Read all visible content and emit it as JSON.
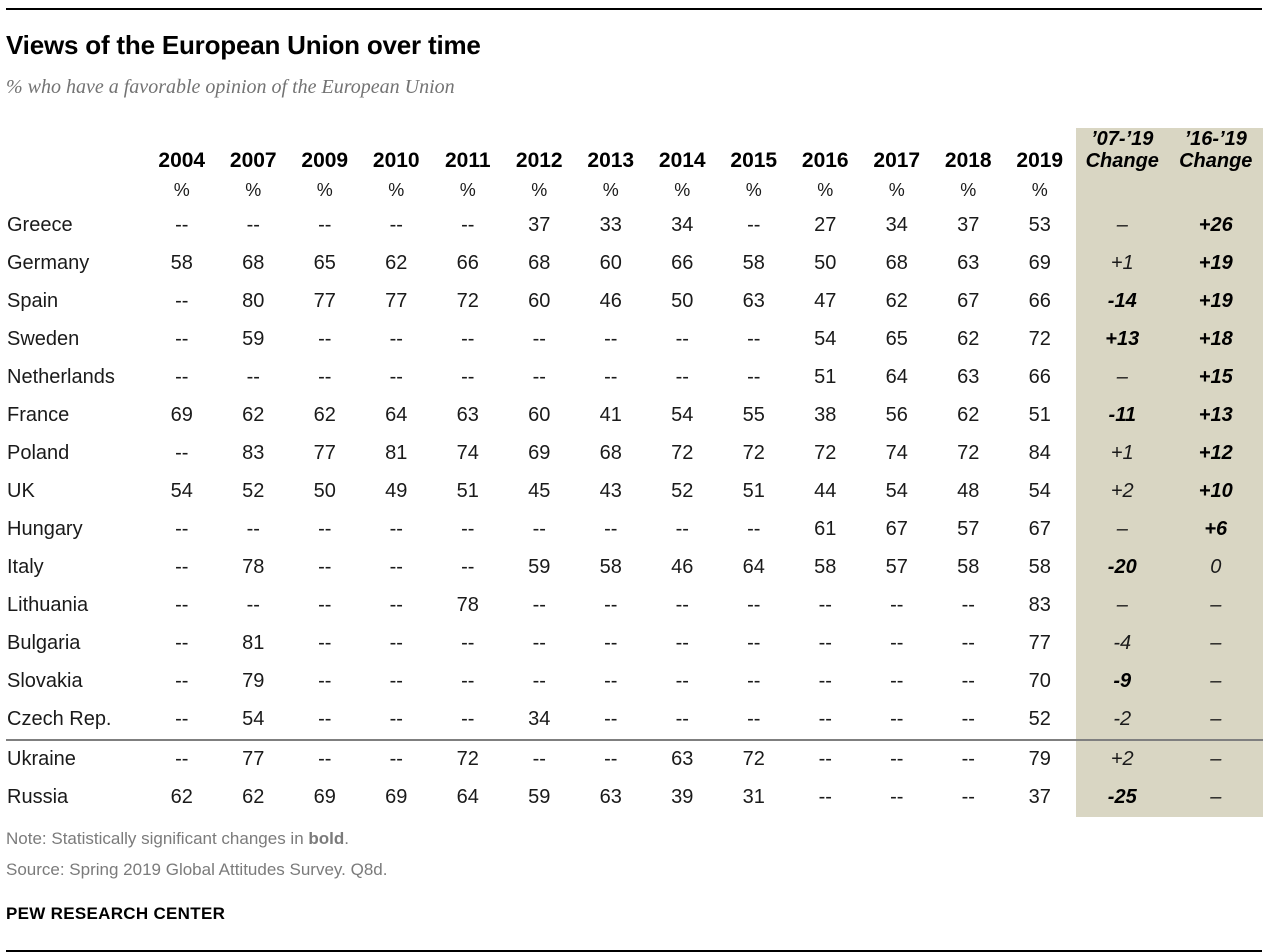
{
  "header": {
    "title": "Views of the European Union over time",
    "subtitle": "% who have a favorable opinion of the European Union"
  },
  "colors": {
    "highlight_panel": "#d9d6c3",
    "divider_line": "#7f7f7f",
    "rule_line": "#000000",
    "note_text": "#7b7b7b"
  },
  "chart_data": {
    "type": "table",
    "title": "Views of the European Union over time",
    "subtitle": "% who have a favorable opinion of the European Union",
    "year_columns": [
      "2004",
      "2007",
      "2009",
      "2010",
      "2011",
      "2012",
      "2013",
      "2014",
      "2015",
      "2016",
      "2017",
      "2018",
      "2019"
    ],
    "percent_symbol": "%",
    "change_columns": [
      {
        "line1": "’07-’19",
        "line2": "Change"
      },
      {
        "line1": "’16-’19",
        "line2": "Change"
      }
    ],
    "rows": [
      {
        "country": "Greece",
        "values": [
          "--",
          "--",
          "--",
          "--",
          "--",
          "37",
          "33",
          "34",
          "--",
          "27",
          "34",
          "37",
          "53"
        ],
        "change_07_19": {
          "text": "–",
          "bold": false
        },
        "change_16_19": {
          "text": "+26",
          "bold": true
        },
        "divider_above": false
      },
      {
        "country": "Germany",
        "values": [
          "58",
          "68",
          "65",
          "62",
          "66",
          "68",
          "60",
          "66",
          "58",
          "50",
          "68",
          "63",
          "69"
        ],
        "change_07_19": {
          "text": "+1",
          "bold": false
        },
        "change_16_19": {
          "text": "+19",
          "bold": true
        },
        "divider_above": false
      },
      {
        "country": "Spain",
        "values": [
          "--",
          "80",
          "77",
          "77",
          "72",
          "60",
          "46",
          "50",
          "63",
          "47",
          "62",
          "67",
          "66"
        ],
        "change_07_19": {
          "text": "-14",
          "bold": true
        },
        "change_16_19": {
          "text": "+19",
          "bold": true
        },
        "divider_above": false
      },
      {
        "country": "Sweden",
        "values": [
          "--",
          "59",
          "--",
          "--",
          "--",
          "--",
          "--",
          "--",
          "--",
          "54",
          "65",
          "62",
          "72"
        ],
        "change_07_19": {
          "text": "+13",
          "bold": true
        },
        "change_16_19": {
          "text": "+18",
          "bold": true
        },
        "divider_above": false
      },
      {
        "country": "Netherlands",
        "values": [
          "--",
          "--",
          "--",
          "--",
          "--",
          "--",
          "--",
          "--",
          "--",
          "51",
          "64",
          "63",
          "66"
        ],
        "change_07_19": {
          "text": "–",
          "bold": false
        },
        "change_16_19": {
          "text": "+15",
          "bold": true
        },
        "divider_above": false
      },
      {
        "country": "France",
        "values": [
          "69",
          "62",
          "62",
          "64",
          "63",
          "60",
          "41",
          "54",
          "55",
          "38",
          "56",
          "62",
          "51"
        ],
        "change_07_19": {
          "text": "-11",
          "bold": true
        },
        "change_16_19": {
          "text": "+13",
          "bold": true
        },
        "divider_above": false
      },
      {
        "country": "Poland",
        "values": [
          "--",
          "83",
          "77",
          "81",
          "74",
          "69",
          "68",
          "72",
          "72",
          "72",
          "74",
          "72",
          "84"
        ],
        "change_07_19": {
          "text": "+1",
          "bold": false
        },
        "change_16_19": {
          "text": "+12",
          "bold": true
        },
        "divider_above": false
      },
      {
        "country": "UK",
        "values": [
          "54",
          "52",
          "50",
          "49",
          "51",
          "45",
          "43",
          "52",
          "51",
          "44",
          "54",
          "48",
          "54"
        ],
        "change_07_19": {
          "text": "+2",
          "bold": false
        },
        "change_16_19": {
          "text": "+10",
          "bold": true
        },
        "divider_above": false
      },
      {
        "country": "Hungary",
        "values": [
          "--",
          "--",
          "--",
          "--",
          "--",
          "--",
          "--",
          "--",
          "--",
          "61",
          "67",
          "57",
          "67"
        ],
        "change_07_19": {
          "text": "–",
          "bold": false
        },
        "change_16_19": {
          "text": "+6",
          "bold": true
        },
        "divider_above": false
      },
      {
        "country": "Italy",
        "values": [
          "--",
          "78",
          "--",
          "--",
          "--",
          "59",
          "58",
          "46",
          "64",
          "58",
          "57",
          "58",
          "58"
        ],
        "change_07_19": {
          "text": "-20",
          "bold": true
        },
        "change_16_19": {
          "text": "0",
          "bold": false
        },
        "divider_above": false
      },
      {
        "country": "Lithuania",
        "values": [
          "--",
          "--",
          "--",
          "--",
          "78",
          "--",
          "--",
          "--",
          "--",
          "--",
          "--",
          "--",
          "83"
        ],
        "change_07_19": {
          "text": "–",
          "bold": false
        },
        "change_16_19": {
          "text": "–",
          "bold": false
        },
        "divider_above": false
      },
      {
        "country": "Bulgaria",
        "values": [
          "--",
          "81",
          "--",
          "--",
          "--",
          "--",
          "--",
          "--",
          "--",
          "--",
          "--",
          "--",
          "77"
        ],
        "change_07_19": {
          "text": "-4",
          "bold": false
        },
        "change_16_19": {
          "text": "–",
          "bold": false
        },
        "divider_above": false
      },
      {
        "country": "Slovakia",
        "values": [
          "--",
          "79",
          "--",
          "--",
          "--",
          "--",
          "--",
          "--",
          "--",
          "--",
          "--",
          "--",
          "70"
        ],
        "change_07_19": {
          "text": "-9",
          "bold": true
        },
        "change_16_19": {
          "text": "–",
          "bold": false
        },
        "divider_above": false
      },
      {
        "country": "Czech Rep.",
        "values": [
          "--",
          "54",
          "--",
          "--",
          "--",
          "34",
          "--",
          "--",
          "--",
          "--",
          "--",
          "--",
          "52"
        ],
        "change_07_19": {
          "text": "-2",
          "bold": false
        },
        "change_16_19": {
          "text": "–",
          "bold": false
        },
        "divider_above": false
      },
      {
        "country": "Ukraine",
        "values": [
          "--",
          "77",
          "--",
          "--",
          "72",
          "--",
          "--",
          "63",
          "72",
          "--",
          "--",
          "--",
          "79"
        ],
        "change_07_19": {
          "text": "+2",
          "bold": false
        },
        "change_16_19": {
          "text": "–",
          "bold": false
        },
        "divider_above": true
      },
      {
        "country": "Russia",
        "values": [
          "62",
          "62",
          "69",
          "69",
          "64",
          "59",
          "63",
          "39",
          "31",
          "--",
          "--",
          "--",
          "37"
        ],
        "change_07_19": {
          "text": "-25",
          "bold": true
        },
        "change_16_19": {
          "text": "–",
          "bold": false
        },
        "divider_above": false
      }
    ]
  },
  "footer": {
    "note_prefix": "Note: Statistically significant changes in ",
    "note_bold": "bold",
    "note_suffix": ".",
    "source": "Source: Spring 2019 Global Attitudes Survey. Q8d.",
    "brand": "PEW RESEARCH CENTER"
  }
}
